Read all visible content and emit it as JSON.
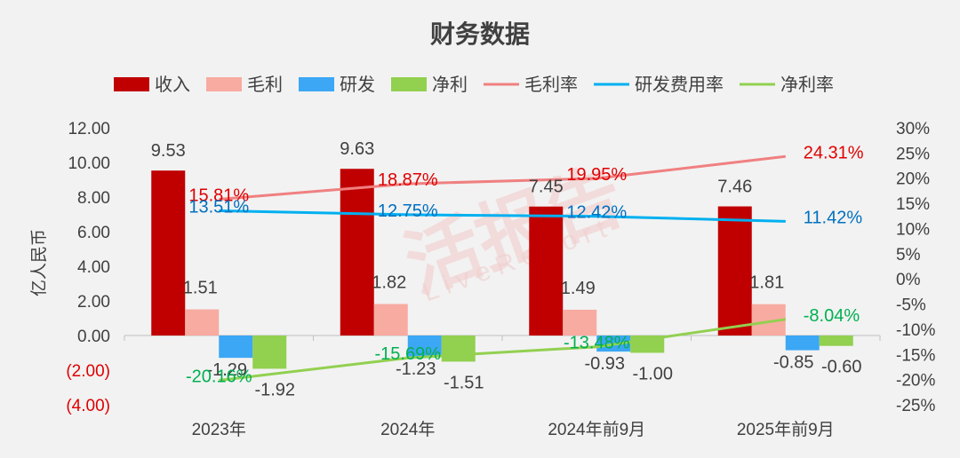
{
  "chart_data": {
    "type": "bar",
    "title": "财务数据",
    "ylabel": "亿人民币",
    "categories": [
      "2023年",
      "2024年",
      "2024年前9月",
      "2025年前9月"
    ],
    "ylim": [
      -4,
      12
    ],
    "y_ticks": [
      "12.00",
      "10.00",
      "8.00",
      "6.00",
      "4.00",
      "2.00",
      "0.00",
      "(2.00)",
      "(4.00)"
    ],
    "y2lim": [
      -25,
      30
    ],
    "y2_ticks": [
      "30%",
      "25%",
      "20%",
      "15%",
      "10%",
      "5%",
      "0%",
      "-5%",
      "-10%",
      "-15%",
      "-20%",
      "-25%"
    ],
    "series": [
      {
        "name": "收入",
        "kind": "bar",
        "color": "#c00000",
        "values": [
          9.53,
          9.63,
          7.45,
          7.46
        ],
        "labels": [
          "9.53",
          "9.63",
          "7.45",
          "7.46"
        ]
      },
      {
        "name": "毛利",
        "kind": "bar",
        "color": "#f8aba1",
        "values": [
          1.51,
          1.82,
          1.49,
          1.81
        ],
        "labels": [
          "1.51",
          "1.82",
          "1.49",
          "1.81"
        ]
      },
      {
        "name": "研发",
        "kind": "bar",
        "color": "#3ba7f5",
        "values": [
          -1.29,
          -1.23,
          -0.93,
          -0.85
        ],
        "labels": [
          "-1.29",
          "-1.23",
          "-0.93",
          "-0.85"
        ]
      },
      {
        "name": "净利",
        "kind": "bar",
        "color": "#92d050",
        "values": [
          -1.92,
          -1.51,
          -1.0,
          -0.6
        ],
        "labels": [
          "-1.92",
          "-1.51",
          "-1.00",
          "-0.60"
        ]
      },
      {
        "name": "毛利率",
        "kind": "line",
        "axis": "right",
        "color": "#f08080",
        "label_color": "#e00000",
        "values": [
          15.81,
          18.87,
          19.95,
          24.31
        ],
        "labels": [
          "15.81%",
          "18.87%",
          "19.95%",
          "24.31%"
        ]
      },
      {
        "name": "研发费用率",
        "kind": "line",
        "axis": "right",
        "color": "#00b0f0",
        "label_color": "#0070c0",
        "values": [
          13.51,
          12.75,
          12.42,
          11.42
        ],
        "labels": [
          "13.51%",
          "12.75%",
          "12.42%",
          "11.42%"
        ]
      },
      {
        "name": "净利率",
        "kind": "line",
        "axis": "right",
        "color": "#92d050",
        "label_color": "#00b050",
        "values": [
          -20.16,
          -15.69,
          -13.48,
          -8.04
        ],
        "labels": [
          "-20.16%",
          "-15.69%",
          "-13.48%",
          "-8.04%"
        ]
      }
    ],
    "legend_position": "top",
    "grid": false
  },
  "watermark": {
    "main": "活报告",
    "sub": "LiveReport"
  }
}
